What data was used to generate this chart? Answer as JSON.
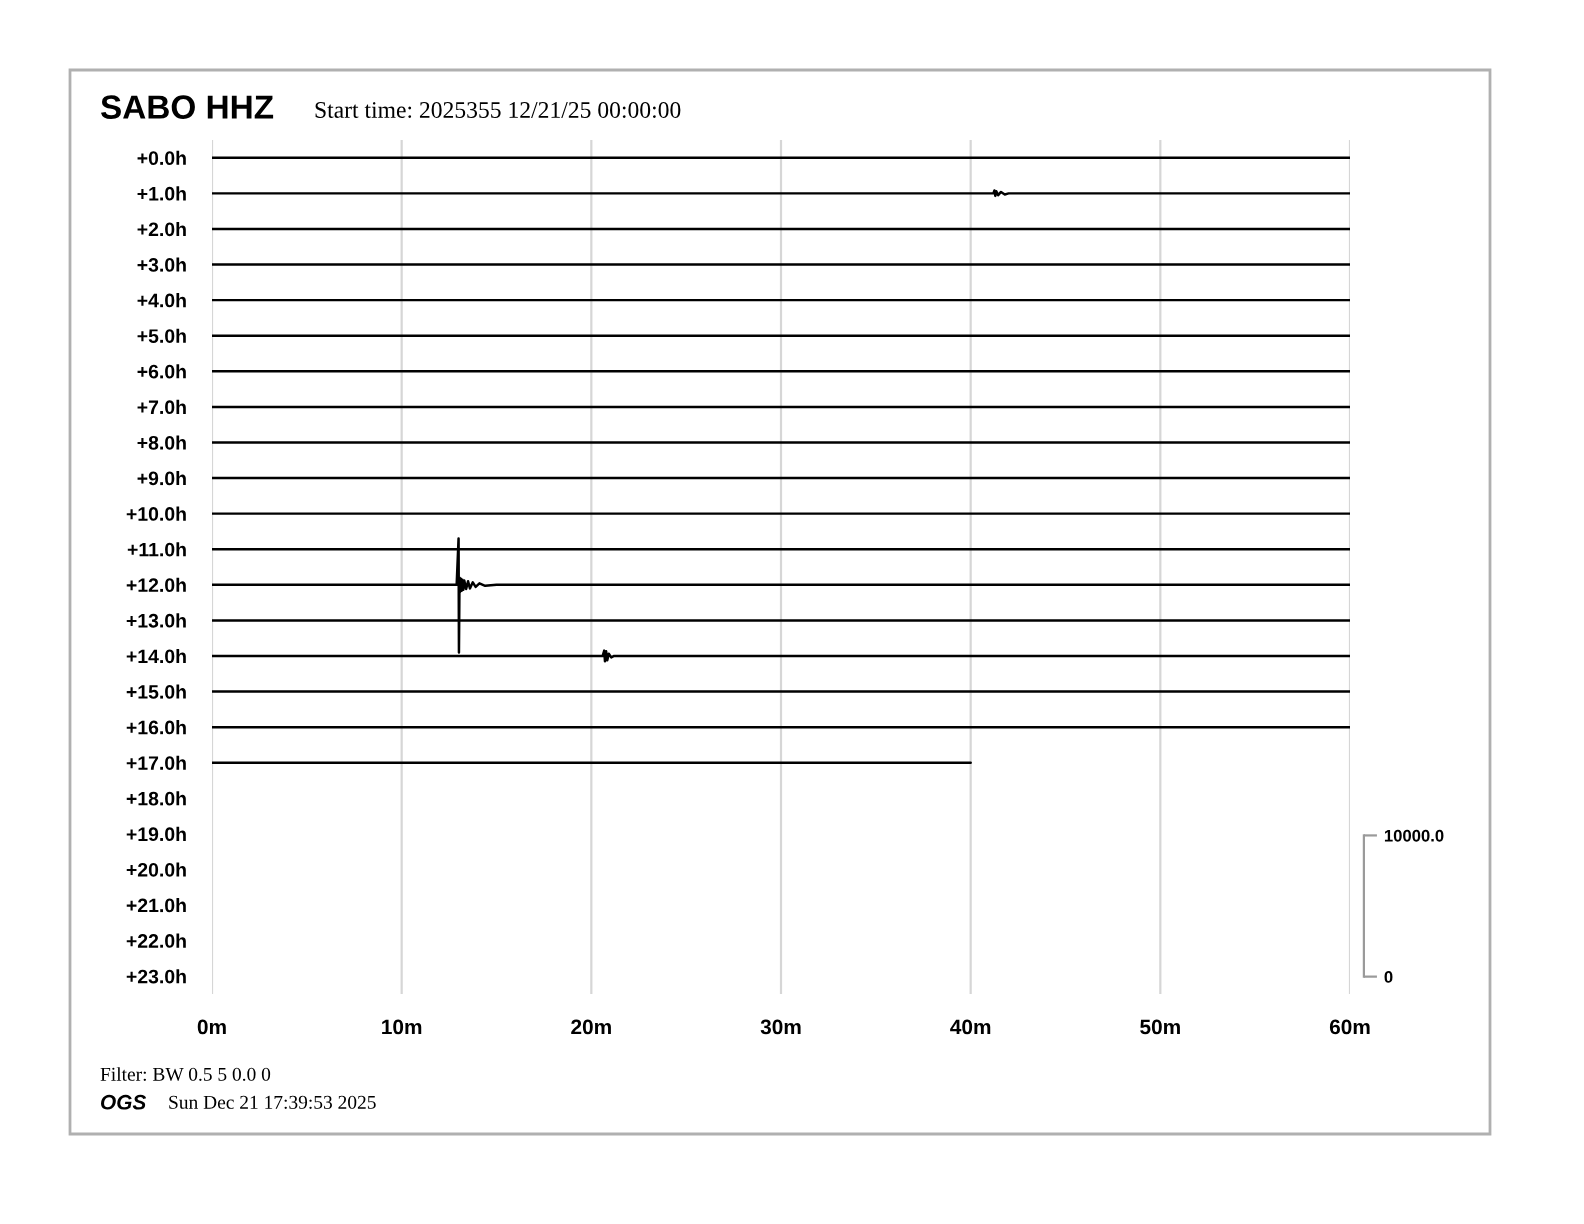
{
  "chart_data": {
    "type": "line",
    "title": "SABO HHZ",
    "subtitle": "Start time: 2025355 12/21/25 00:00:00",
    "annotations": [
      "Filter: BW 0.5 5 0.0 0",
      "OGS",
      "Sun Dec 21 17:39:53 2025"
    ],
    "xlim": [
      0,
      60
    ],
    "xticks": [
      {
        "value": 0,
        "label": "0m"
      },
      {
        "value": 10,
        "label": "10m"
      },
      {
        "value": 20,
        "label": "20m"
      },
      {
        "value": 30,
        "label": "30m"
      },
      {
        "value": 40,
        "label": "40m"
      },
      {
        "value": 50,
        "label": "50m"
      },
      {
        "value": 60,
        "label": "60m"
      }
    ],
    "ylim": [
      23.5,
      -0.5
    ],
    "yticks": [
      {
        "value": 0,
        "label": "+0.0h"
      },
      {
        "value": 1,
        "label": "+1.0h"
      },
      {
        "value": 2,
        "label": "+2.0h"
      },
      {
        "value": 3,
        "label": "+3.0h"
      },
      {
        "value": 4,
        "label": "+4.0h"
      },
      {
        "value": 5,
        "label": "+5.0h"
      },
      {
        "value": 6,
        "label": "+6.0h"
      },
      {
        "value": 7,
        "label": "+7.0h"
      },
      {
        "value": 8,
        "label": "+8.0h"
      },
      {
        "value": 9,
        "label": "+9.0h"
      },
      {
        "value": 10,
        "label": "+10.0h"
      },
      {
        "value": 11,
        "label": "+11.0h"
      },
      {
        "value": 12,
        "label": "+12.0h"
      },
      {
        "value": 13,
        "label": "+13.0h"
      },
      {
        "value": 14,
        "label": "+14.0h"
      },
      {
        "value": 15,
        "label": "+15.0h"
      },
      {
        "value": 16,
        "label": "+16.0h"
      },
      {
        "value": 17,
        "label": "+17.0h"
      },
      {
        "value": 18,
        "label": "+18.0h"
      },
      {
        "value": 19,
        "label": "+19.0h"
      },
      {
        "value": 20,
        "label": "+20.0h"
      },
      {
        "value": 21,
        "label": "+21.0h"
      },
      {
        "value": 22,
        "label": "+22.0h"
      },
      {
        "value": 23,
        "label": "+23.0h"
      }
    ],
    "y2lim": [
      -1230,
      59250
    ],
    "y2ticks": [
      0,
      {
        "value": 10000,
        "label": "10000.0"
      }
    ],
    "grid": "x",
    "series": [
      {
        "color": "#000000",
        "x": [
          0,
          5,
          10,
          15,
          20,
          25,
          30,
          35,
          40,
          45,
          50,
          55,
          60
        ],
        "values": [
          0,
          0,
          0,
          0,
          0,
          0,
          0,
          0,
          0,
          0,
          0,
          0,
          0
        ]
      },
      {
        "color": "#000000",
        "x": [
          0,
          5,
          10,
          15,
          20,
          25,
          30,
          35,
          40,
          41.2,
          41.25,
          41.3,
          41.35,
          41.45,
          41.6,
          41.8,
          42,
          45,
          50,
          55,
          60
        ],
        "values": [
          1,
          1,
          1,
          1,
          1,
          1,
          1,
          1,
          1,
          1,
          0.92,
          1.07,
          0.94,
          1.05,
          0.96,
          1.03,
          1,
          1,
          1,
          1,
          1
        ]
      },
      {
        "color": "#000000",
        "x": [
          0,
          5,
          10,
          15,
          20,
          25,
          30,
          35,
          40,
          45,
          50,
          55,
          60
        ],
        "values": [
          2,
          2,
          2,
          2,
          2,
          2,
          2,
          2,
          2,
          2,
          2,
          2,
          2
        ]
      },
      {
        "color": "#000000",
        "x": [
          0,
          5,
          10,
          15,
          20,
          25,
          30,
          35,
          40,
          45,
          50,
          55,
          60
        ],
        "values": [
          3,
          3,
          3,
          3,
          3,
          3,
          3,
          3,
          3,
          3,
          3,
          3,
          3
        ]
      },
      {
        "color": "#000000",
        "x": [
          0,
          5,
          10,
          15,
          20,
          25,
          30,
          35,
          40,
          45,
          50,
          55,
          60
        ],
        "values": [
          4,
          4,
          4,
          4,
          4,
          4,
          4,
          4,
          4,
          4,
          4,
          4,
          4
        ]
      },
      {
        "color": "#000000",
        "x": [
          0,
          5,
          10,
          15,
          20,
          25,
          30,
          35,
          40,
          45,
          50,
          55,
          60
        ],
        "values": [
          5,
          5,
          5,
          5,
          5,
          5,
          5,
          5,
          5,
          5,
          5,
          5,
          5
        ]
      },
      {
        "color": "#000000",
        "x": [
          0,
          5,
          10,
          15,
          20,
          25,
          30,
          35,
          40,
          45,
          50,
          55,
          60
        ],
        "values": [
          6,
          6,
          6,
          6,
          6,
          6,
          6,
          6,
          6,
          6,
          6,
          6,
          6
        ]
      },
      {
        "color": "#000000",
        "x": [
          0,
          5,
          10,
          15,
          20,
          25,
          30,
          35,
          40,
          45,
          50,
          55,
          60
        ],
        "values": [
          7,
          7,
          7,
          7,
          7,
          7,
          7,
          7,
          7,
          7,
          7,
          7,
          7
        ]
      },
      {
        "color": "#000000",
        "x": [
          0,
          5,
          10,
          15,
          20,
          25,
          30,
          35,
          40,
          45,
          50,
          55,
          60
        ],
        "values": [
          8,
          8,
          8,
          8,
          8,
          8,
          8,
          8,
          8,
          8,
          8,
          8,
          8
        ]
      },
      {
        "color": "#000000",
        "x": [
          0,
          5,
          10,
          15,
          20,
          25,
          30,
          35,
          40,
          45,
          50,
          55,
          60
        ],
        "values": [
          9,
          9,
          9,
          9,
          9,
          9,
          9,
          9,
          9,
          9,
          9,
          9,
          9
        ]
      },
      {
        "color": "#000000",
        "x": [
          0,
          5,
          10,
          15,
          20,
          25,
          30,
          35,
          40,
          45,
          50,
          55,
          60
        ],
        "values": [
          10,
          10,
          10,
          10,
          10,
          10,
          10,
          10,
          10,
          10,
          10,
          10,
          10
        ]
      },
      {
        "color": "#000000",
        "x": [
          0,
          5,
          10,
          15,
          20,
          25,
          30,
          35,
          40,
          45,
          50,
          55,
          60
        ],
        "values": [
          11,
          11,
          11,
          11,
          11,
          11,
          11,
          11,
          11,
          11,
          11,
          11,
          11
        ]
      },
      {
        "color": "#000000",
        "x": [
          0,
          5,
          10,
          12.9,
          13,
          13.02,
          13.05,
          13.08,
          13.12,
          13.16,
          13.2,
          13.25,
          13.3,
          13.4,
          13.5,
          13.6,
          13.75,
          13.9,
          14.1,
          14.4,
          15,
          20,
          25,
          30,
          35,
          40,
          45,
          50,
          55,
          60
        ],
        "values": [
          12,
          12,
          12,
          12,
          10.7,
          13.9,
          11.8,
          12.2,
          11.83,
          12.17,
          11.86,
          12.14,
          11.88,
          12.12,
          11.9,
          12.1,
          11.93,
          12.06,
          11.96,
          12.03,
          12,
          12,
          12,
          12,
          12,
          12,
          12,
          12,
          12,
          12
        ]
      },
      {
        "color": "#000000",
        "x": [
          0,
          5,
          10,
          15,
          20,
          25,
          30,
          35,
          40,
          45,
          50,
          55,
          60
        ],
        "values": [
          13,
          13,
          13,
          13,
          13,
          13,
          13,
          13,
          13,
          13,
          13,
          13,
          13
        ]
      },
      {
        "color": "#000000",
        "x": [
          0,
          5,
          10,
          15,
          20,
          20.6,
          20.68,
          20.72,
          20.78,
          20.84,
          20.92,
          21.05,
          21.2,
          25,
          30,
          35,
          40,
          45,
          50,
          55,
          60
        ],
        "values": [
          14,
          14,
          14,
          14,
          14,
          14,
          13.85,
          14.15,
          13.87,
          14.12,
          13.94,
          14.04,
          14,
          14,
          14,
          14,
          14,
          14,
          14,
          14,
          14
        ]
      },
      {
        "color": "#000000",
        "x": [
          0,
          5,
          10,
          15,
          20,
          25,
          30,
          35,
          40,
          45,
          50,
          55,
          60
        ],
        "values": [
          15,
          15,
          15,
          15,
          15,
          15,
          15,
          15,
          15,
          15,
          15,
          15,
          15
        ]
      },
      {
        "color": "#000000",
        "x": [
          0,
          5,
          10,
          15,
          20,
          25,
          30,
          35,
          40,
          45,
          50,
          55,
          60
        ],
        "values": [
          16,
          16,
          16,
          16,
          16,
          16,
          16,
          16,
          16,
          16,
          16,
          16,
          16
        ]
      },
      {
        "color": "#000000",
        "x": [
          0,
          5,
          10,
          15,
          20,
          25,
          30,
          35,
          40
        ],
        "values": [
          17,
          17,
          17,
          17,
          17,
          17,
          17,
          17,
          17
        ]
      }
    ]
  }
}
